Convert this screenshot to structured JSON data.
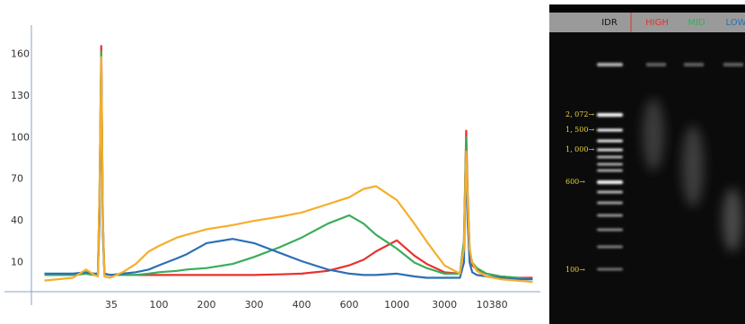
{
  "chart_data": {
    "type": "line",
    "x": [
      8,
      15,
      20,
      24,
      26,
      27,
      28,
      29,
      30,
      34,
      45,
      60,
      80,
      100,
      130,
      150,
      200,
      250,
      300,
      350,
      400,
      500,
      600,
      700,
      800,
      1000,
      1500,
      2000,
      3000,
      4500,
      5000,
      5300,
      5500,
      5800,
      6200,
      7000,
      9000,
      13000,
      20000,
      30000
    ],
    "series": [
      {
        "color": "#e8312f",
        "values": [
          1,
          1,
          2,
          1,
          1,
          60,
          166,
          40,
          2,
          1,
          1,
          1,
          1,
          1,
          1,
          1,
          1,
          1,
          1,
          1.5,
          2,
          4,
          8,
          12,
          18,
          26,
          15,
          9,
          3,
          2,
          25,
          105,
          60,
          20,
          8,
          5,
          2,
          0,
          -1,
          -1
        ]
      },
      {
        "color": "#3aad5a",
        "values": [
          1,
          1,
          2,
          1,
          1,
          60,
          162,
          40,
          2,
          1,
          1,
          1,
          2,
          3,
          4,
          5,
          6,
          9,
          14,
          21,
          28,
          38,
          44,
          38,
          30,
          20,
          10,
          6,
          2,
          2,
          25,
          100,
          55,
          18,
          10,
          6,
          2,
          0,
          -1,
          -2
        ]
      },
      {
        "color": "#2c6fb5",
        "values": [
          2,
          2,
          3,
          2,
          2,
          40,
          155,
          30,
          2,
          1,
          2,
          3,
          5,
          8,
          13,
          16,
          24,
          27,
          24,
          17,
          11,
          5,
          2,
          1,
          1,
          2,
          0,
          -1,
          -1,
          -1,
          10,
          90,
          40,
          10,
          3,
          1,
          0,
          -1,
          -2,
          -2
        ]
      },
      {
        "color": "#f5ae2c",
        "values": [
          -3,
          -1,
          5,
          1,
          0,
          60,
          158,
          40,
          0,
          -1,
          3,
          9,
          18,
          22,
          28,
          30,
          34,
          37,
          40,
          43,
          46,
          52,
          57,
          63,
          65,
          55,
          38,
          25,
          8,
          2,
          20,
          90,
          55,
          20,
          10,
          4,
          0,
          -2,
          -3,
          -4
        ]
      }
    ],
    "xlim": [
      6,
      35000
    ],
    "xticks": [
      35,
      100,
      200,
      300,
      400,
      600,
      1000,
      3000,
      10380
    ],
    "ylim": [
      -11,
      181
    ],
    "yticks": [
      10,
      40,
      70,
      100,
      130,
      160
    ]
  },
  "gel": {
    "lanes": [
      "IDR",
      "HIGH",
      "MID",
      "LOW"
    ],
    "ladder_labels": [
      "2, 072→",
      "1, 500→",
      "1, 000→",
      "600→",
      "100→"
    ]
  }
}
